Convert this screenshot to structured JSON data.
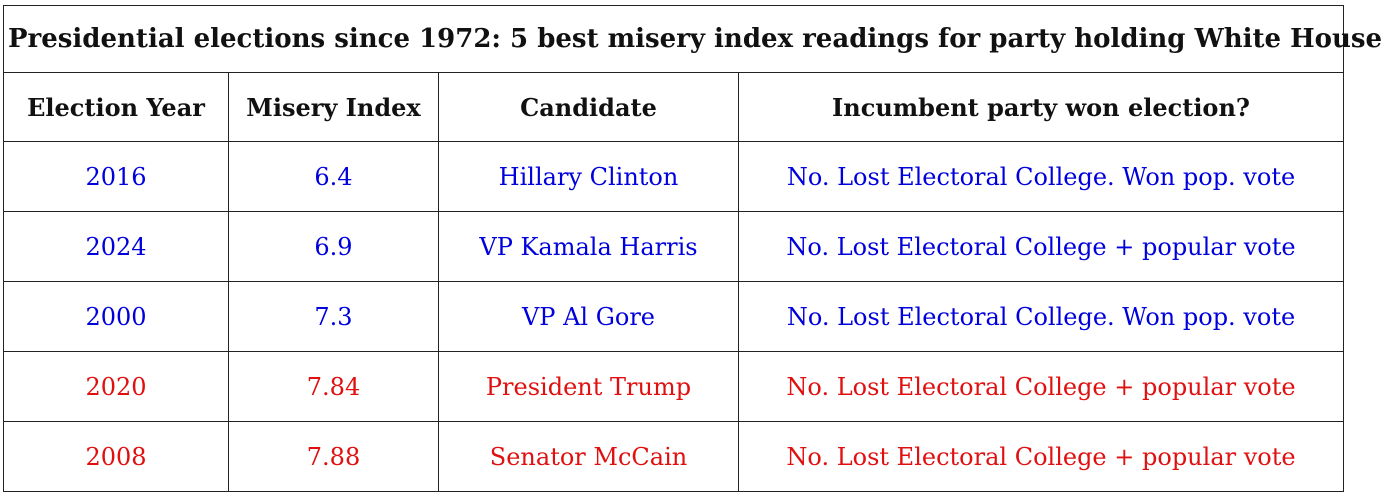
{
  "title": "Presidential elections since 1972: 5 best misery index readings for party holding White House",
  "headers": [
    "Election Year",
    "Misery Index",
    "Candidate",
    "Incumbent party won election?"
  ],
  "rows": [
    {
      "year": "2016",
      "misery_index": "6.4",
      "candidate": "Hillary Clinton",
      "result": "No. Lost Electoral College. Won pop. vote",
      "party": "democratic",
      "color": "#0000dd"
    },
    {
      "year": "2024",
      "misery_index": "6.9",
      "candidate": "VP Kamala Harris",
      "result": "No. Lost Electoral College + popular vote",
      "party": "democratic",
      "color": "#0000dd"
    },
    {
      "year": "2000",
      "misery_index": "7.3",
      "candidate": "VP Al Gore",
      "result": "No. Lost Electoral College. Won pop. vote",
      "party": "democratic",
      "color": "#0000dd"
    },
    {
      "year": "2020",
      "misery_index": "7.84",
      "candidate": "President Trump",
      "result": "No. Lost Electoral College + popular vote",
      "party": "republican",
      "color": "#e01010"
    },
    {
      "year": "2008",
      "misery_index": "7.88",
      "candidate": "Senator McCain",
      "result": "No. Lost Electoral College + popular vote",
      "party": "republican",
      "color": "#e01010"
    }
  ],
  "colors": {
    "democratic": "#0000dd",
    "republican": "#e01010",
    "header_text": "#111111",
    "border": "#222222"
  }
}
